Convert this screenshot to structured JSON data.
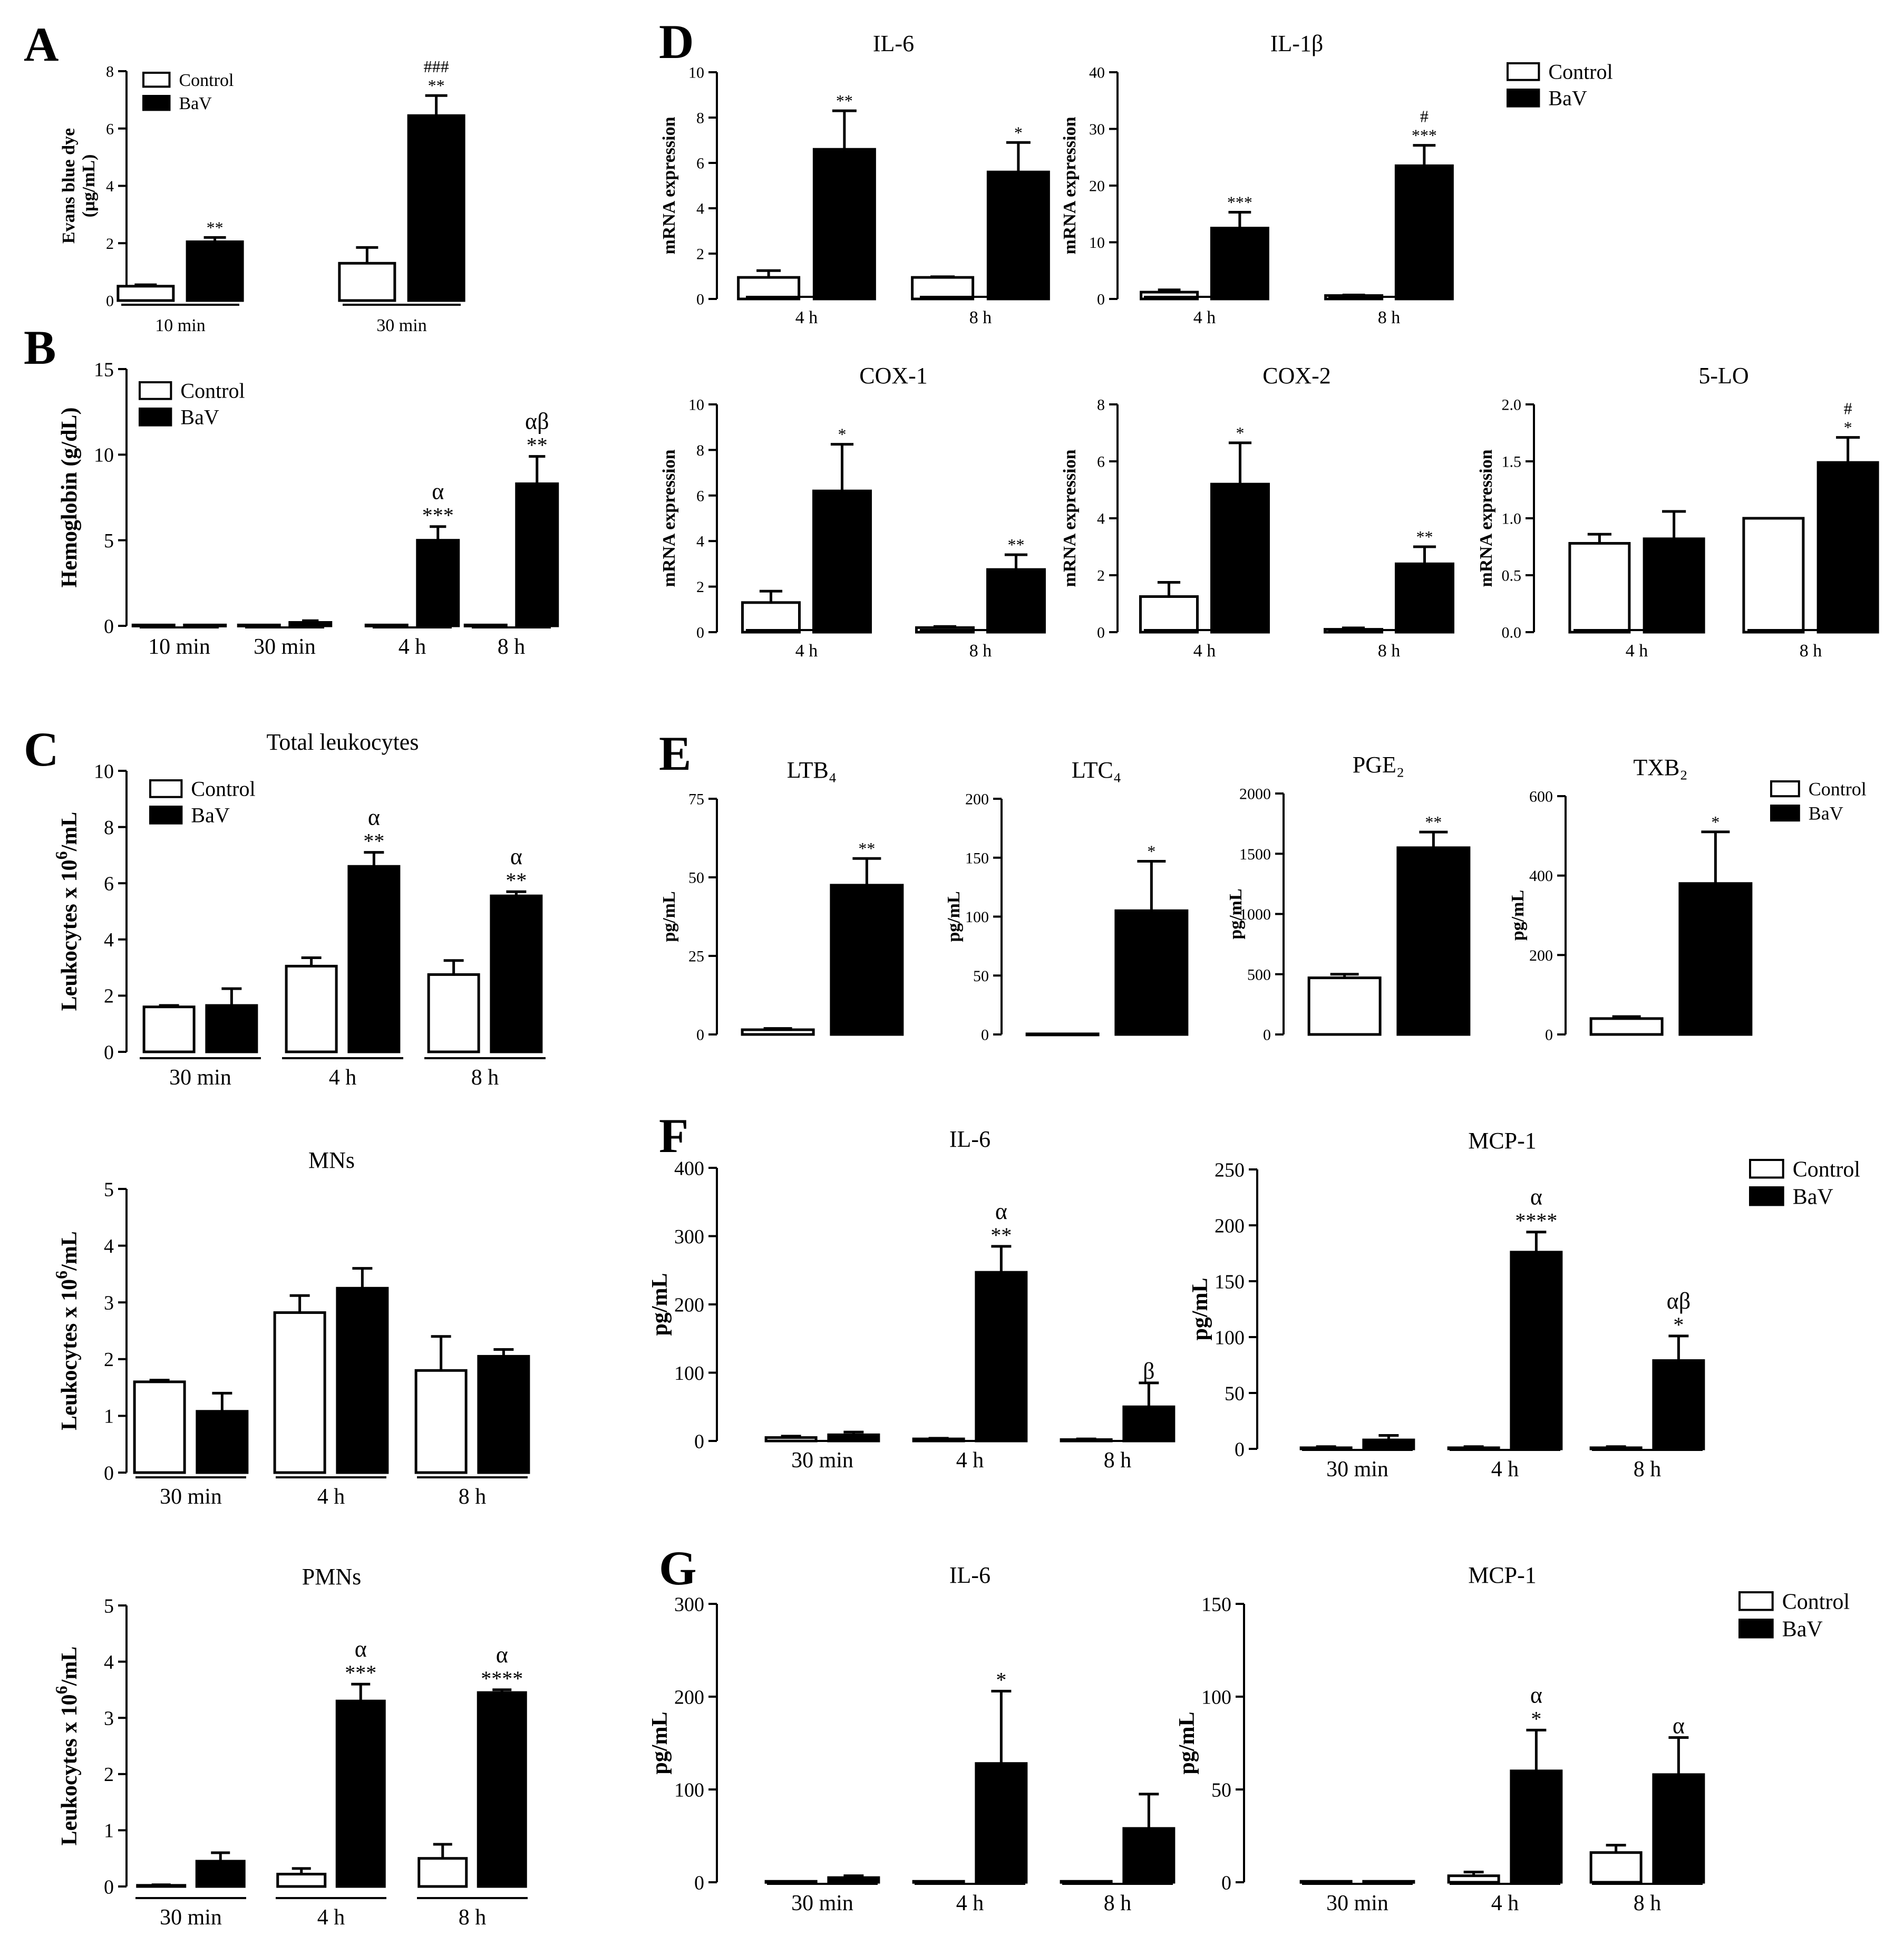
{
  "figure": {
    "colors": {
      "control": "#ffffff",
      "bav": "#000000",
      "stroke": "#000000"
    },
    "legend_labels": {
      "control": "Control",
      "bav": "BaV"
    }
  },
  "chart_data": [
    {
      "id": "A",
      "panel": "A",
      "type": "bar",
      "title": "",
      "ylabel": "Evans blue dye\n(µg/mL)",
      "ylim": [
        0,
        8
      ],
      "yticks": [
        "0",
        "2",
        "4",
        "6",
        "8"
      ],
      "groups": [
        "10 min",
        "30 min"
      ],
      "legend": "top-left",
      "series": [
        {
          "name": "Control",
          "values": [
            0.5,
            1.3
          ],
          "errors": [
            0.05,
            0.55
          ]
        },
        {
          "name": "BaV",
          "values": [
            2.05,
            6.45
          ],
          "errors": [
            0.15,
            0.7
          ]
        }
      ],
      "annotations": [
        {
          "group": 0,
          "series": 1,
          "lines": [
            "**"
          ]
        },
        {
          "group": 1,
          "series": 1,
          "lines": [
            "###",
            "**"
          ]
        }
      ]
    },
    {
      "id": "B",
      "panel": "B",
      "type": "bar",
      "title": "",
      "ylabel": "Hemoglobin (g/dL)",
      "ylim": [
        0,
        15
      ],
      "yticks": [
        "0",
        "5",
        "10",
        "15"
      ],
      "groups": [
        "10 min",
        "30 min",
        "4 h",
        "8 h"
      ],
      "legend": "top-left",
      "series": [
        {
          "name": "Control",
          "values": [
            0.05,
            0.05,
            0.05,
            0.05
          ],
          "errors": [
            0,
            0,
            0,
            0
          ]
        },
        {
          "name": "BaV",
          "values": [
            0.05,
            0.2,
            5.0,
            8.3
          ],
          "errors": [
            0,
            0.1,
            0.8,
            1.6
          ]
        }
      ],
      "annotations": [
        {
          "group": 2,
          "series": 1,
          "lines": [
            "α",
            "***"
          ]
        },
        {
          "group": 3,
          "series": 1,
          "lines": [
            "αβ",
            "**"
          ]
        }
      ]
    },
    {
      "id": "C1",
      "panel": "C",
      "type": "bar",
      "title": "Total leukocytes",
      "ylabel": "Leukocytes x 10^6/mL",
      "ylim": [
        0,
        10
      ],
      "yticks": [
        "0",
        "2",
        "4",
        "6",
        "8",
        "10"
      ],
      "groups": [
        "30 min",
        "4 h",
        "8 h"
      ],
      "legend": "top-left",
      "series": [
        {
          "name": "Control",
          "values": [
            1.6,
            3.05,
            2.75
          ],
          "errors": [
            0.05,
            0.3,
            0.5
          ]
        },
        {
          "name": "BaV",
          "values": [
            1.65,
            6.6,
            5.55
          ],
          "errors": [
            0.6,
            0.5,
            0.15
          ]
        }
      ],
      "annotations": [
        {
          "group": 1,
          "series": 1,
          "lines": [
            "α",
            "**"
          ]
        },
        {
          "group": 2,
          "series": 1,
          "lines": [
            "α",
            "**"
          ]
        }
      ]
    },
    {
      "id": "C2",
      "panel": "",
      "type": "bar",
      "title": "MNs",
      "ylabel": "Leukocytes x 10^6/mL",
      "ylim": [
        0,
        5
      ],
      "yticks": [
        "0",
        "1",
        "2",
        "3",
        "4",
        "5"
      ],
      "groups": [
        "30 min",
        "4 h",
        "8 h"
      ],
      "legend": "none",
      "series": [
        {
          "name": "Control",
          "values": [
            1.6,
            2.82,
            1.8
          ],
          "errors": [
            0.03,
            0.3,
            0.6
          ]
        },
        {
          "name": "BaV",
          "values": [
            1.08,
            3.25,
            2.05
          ],
          "errors": [
            0.32,
            0.35,
            0.12
          ]
        }
      ],
      "annotations": []
    },
    {
      "id": "C3",
      "panel": "",
      "type": "bar",
      "title": "PMNs",
      "ylabel": "Leukocytes x 10^6/mL",
      "ylim": [
        0,
        5
      ],
      "yticks": [
        "0",
        "1",
        "2",
        "3",
        "4",
        "5"
      ],
      "groups": [
        "30 min",
        "4 h",
        "8 h"
      ],
      "legend": "none",
      "series": [
        {
          "name": "Control",
          "values": [
            0.02,
            0.22,
            0.5
          ],
          "errors": [
            0.01,
            0.1,
            0.25
          ]
        },
        {
          "name": "BaV",
          "values": [
            0.45,
            3.3,
            3.45
          ],
          "errors": [
            0.15,
            0.3,
            0.05
          ]
        }
      ],
      "annotations": [
        {
          "group": 1,
          "series": 1,
          "lines": [
            "α",
            "***"
          ]
        },
        {
          "group": 2,
          "series": 1,
          "lines": [
            "α",
            "****"
          ]
        }
      ]
    },
    {
      "id": "D1",
      "panel": "D",
      "type": "bar",
      "title": "IL-6",
      "ylabel": "mRNA expression",
      "ylim": [
        0,
        10
      ],
      "yticks": [
        "0",
        "2",
        "4",
        "6",
        "8",
        "10"
      ],
      "groups": [
        "4 h",
        "8 h"
      ],
      "legend": "none",
      "series": [
        {
          "name": "Control",
          "values": [
            0.95,
            0.95
          ],
          "errors": [
            0.3,
            0.03
          ]
        },
        {
          "name": "BaV",
          "values": [
            6.6,
            5.6
          ],
          "errors": [
            1.7,
            1.3
          ]
        }
      ],
      "annotations": [
        {
          "group": 0,
          "series": 1,
          "lines": [
            "**"
          ]
        },
        {
          "group": 1,
          "series": 1,
          "lines": [
            "*"
          ]
        }
      ]
    },
    {
      "id": "D2",
      "panel": "",
      "type": "bar",
      "title": "IL-1β",
      "ylabel": "mRNA expression",
      "ylim": [
        0,
        40
      ],
      "yticks": [
        "0",
        "10",
        "20",
        "30",
        "40"
      ],
      "groups": [
        "4 h",
        "8 h"
      ],
      "legend": "top-right",
      "series": [
        {
          "name": "Control",
          "values": [
            1.2,
            0.6
          ],
          "errors": [
            0.4,
            0.1
          ]
        },
        {
          "name": "BaV",
          "values": [
            12.5,
            23.5
          ],
          "errors": [
            2.8,
            3.6
          ]
        }
      ],
      "annotations": [
        {
          "group": 0,
          "series": 1,
          "lines": [
            "***"
          ]
        },
        {
          "group": 1,
          "series": 1,
          "lines": [
            "#",
            "***"
          ]
        }
      ]
    },
    {
      "id": "D3",
      "panel": "",
      "type": "bar",
      "title": "COX-1",
      "ylabel": "mRNA expression",
      "ylim": [
        0,
        10
      ],
      "yticks": [
        "0",
        "2",
        "4",
        "6",
        "8",
        "10"
      ],
      "groups": [
        "4 h",
        "8 h"
      ],
      "legend": "none",
      "series": [
        {
          "name": "Control",
          "values": [
            1.3,
            0.2
          ],
          "errors": [
            0.5,
            0.05
          ]
        },
        {
          "name": "BaV",
          "values": [
            6.2,
            2.75
          ],
          "errors": [
            2.05,
            0.65
          ]
        }
      ],
      "annotations": [
        {
          "group": 0,
          "series": 1,
          "lines": [
            "*"
          ]
        },
        {
          "group": 1,
          "series": 1,
          "lines": [
            "**"
          ]
        }
      ]
    },
    {
      "id": "D4",
      "panel": "",
      "type": "bar",
      "title": "COX-2",
      "ylabel": "mRNA expression",
      "ylim": [
        0,
        8
      ],
      "yticks": [
        "0",
        "2",
        "4",
        "6",
        "8"
      ],
      "groups": [
        "4 h",
        "8 h"
      ],
      "legend": "none",
      "series": [
        {
          "name": "Control",
          "values": [
            1.25,
            0.1
          ],
          "errors": [
            0.5,
            0.05
          ]
        },
        {
          "name": "BaV",
          "values": [
            5.2,
            2.4
          ],
          "errors": [
            1.45,
            0.6
          ]
        }
      ],
      "annotations": [
        {
          "group": 0,
          "series": 1,
          "lines": [
            "*"
          ]
        },
        {
          "group": 1,
          "series": 1,
          "lines": [
            "**"
          ]
        }
      ]
    },
    {
      "id": "D5",
      "panel": "",
      "type": "bar",
      "title": "5-LO",
      "ylabel": "mRNA expression",
      "ylim": [
        0,
        2
      ],
      "yticks": [
        "0.0",
        "0.5",
        "1.0",
        "1.5",
        "2.0"
      ],
      "groups": [
        "4 h",
        "8 h"
      ],
      "legend": "none",
      "series": [
        {
          "name": "Control",
          "values": [
            0.78,
            1.0
          ],
          "errors": [
            0.08,
            0
          ]
        },
        {
          "name": "BaV",
          "values": [
            0.82,
            1.49
          ],
          "errors": [
            0.24,
            0.22
          ]
        }
      ],
      "annotations": [
        {
          "group": 1,
          "series": 1,
          "lines": [
            "#",
            "*"
          ]
        }
      ]
    },
    {
      "id": "E1",
      "panel": "E",
      "type": "bar",
      "title": "LTB₄",
      "ylabel": "pg/mL",
      "ylim": [
        0,
        75
      ],
      "yticks": [
        "0",
        "25",
        "50",
        "75"
      ],
      "groups": [
        ""
      ],
      "legend": "none",
      "series": [
        {
          "name": "Control",
          "values": [
            1.5
          ],
          "errors": [
            0.4
          ]
        },
        {
          "name": "BaV",
          "values": [
            47.5
          ],
          "errors": [
            8.5
          ]
        }
      ],
      "annotations": [
        {
          "group": 0,
          "series": 1,
          "lines": [
            "**"
          ]
        }
      ]
    },
    {
      "id": "E2",
      "panel": "",
      "type": "bar",
      "title": "LTC₄",
      "ylabel": "pg/mL",
      "ylim": [
        0,
        200
      ],
      "yticks": [
        "0",
        "50",
        "100",
        "150",
        "200"
      ],
      "groups": [
        ""
      ],
      "legend": "none",
      "series": [
        {
          "name": "Control",
          "values": [
            0.5
          ],
          "errors": [
            0
          ]
        },
        {
          "name": "BaV",
          "values": [
            105
          ],
          "errors": [
            42
          ]
        }
      ],
      "annotations": [
        {
          "group": 0,
          "series": 1,
          "lines": [
            "*"
          ]
        }
      ]
    },
    {
      "id": "E3",
      "panel": "",
      "type": "bar",
      "title": "PGE₂",
      "ylabel": "pg/mL",
      "ylim": [
        0,
        2000
      ],
      "yticks": [
        "0",
        "500",
        "1000",
        "1500",
        "2000"
      ],
      "groups": [
        ""
      ],
      "legend": "none",
      "series": [
        {
          "name": "Control",
          "values": [
            470
          ],
          "errors": [
            30
          ]
        },
        {
          "name": "BaV",
          "values": [
            1550
          ],
          "errors": [
            130
          ]
        }
      ],
      "annotations": [
        {
          "group": 0,
          "series": 1,
          "lines": [
            "**"
          ]
        }
      ]
    },
    {
      "id": "E4",
      "panel": "",
      "type": "bar",
      "title": "TXB₂",
      "ylabel": "pg/mL",
      "ylim": [
        0,
        600
      ],
      "yticks": [
        "0",
        "200",
        "400",
        "600"
      ],
      "groups": [
        ""
      ],
      "legend": "top-right",
      "series": [
        {
          "name": "Control",
          "values": [
            40
          ],
          "errors": [
            5
          ]
        },
        {
          "name": "BaV",
          "values": [
            380
          ],
          "errors": [
            130
          ]
        }
      ],
      "annotations": [
        {
          "group": 0,
          "series": 1,
          "lines": [
            "*"
          ]
        }
      ]
    },
    {
      "id": "F1",
      "panel": "F",
      "type": "bar",
      "title": "IL-6",
      "ylabel": "pg/mL",
      "ylim": [
        0,
        400
      ],
      "yticks": [
        "0",
        "100",
        "200",
        "300",
        "400"
      ],
      "groups": [
        "30 min",
        "4 h",
        "8 h"
      ],
      "legend": "none",
      "series": [
        {
          "name": "Control",
          "values": [
            5,
            3,
            2
          ],
          "errors": [
            2,
            1,
            1
          ]
        },
        {
          "name": "BaV",
          "values": [
            9,
            247,
            50
          ],
          "errors": [
            4,
            38,
            35
          ]
        }
      ],
      "annotations": [
        {
          "group": 1,
          "series": 1,
          "lines": [
            "α",
            "**"
          ]
        },
        {
          "group": 2,
          "series": 1,
          "lines": [
            "β"
          ]
        }
      ]
    },
    {
      "id": "F2",
      "panel": "",
      "type": "bar",
      "title": "MCP-1",
      "ylabel": "pg/mL",
      "ylim": [
        0,
        250
      ],
      "yticks": [
        "0",
        "50",
        "100",
        "150",
        "200",
        "250"
      ],
      "groups": [
        "30 min",
        "4 h",
        "8 h"
      ],
      "legend": "top-right",
      "series": [
        {
          "name": "Control",
          "values": [
            1,
            1,
            1
          ],
          "errors": [
            1,
            1,
            1
          ]
        },
        {
          "name": "BaV",
          "values": [
            8,
            176,
            79
          ],
          "errors": [
            4,
            18,
            22
          ]
        }
      ],
      "annotations": [
        {
          "group": 1,
          "series": 1,
          "lines": [
            "α",
            "****"
          ]
        },
        {
          "group": 2,
          "series": 1,
          "lines": [
            "αβ",
            "*"
          ]
        }
      ]
    },
    {
      "id": "G1",
      "panel": "G",
      "type": "bar",
      "title": "IL-6",
      "ylabel": "pg/mL",
      "ylim": [
        0,
        300
      ],
      "yticks": [
        "0",
        "100",
        "200",
        "300"
      ],
      "groups": [
        "30 min",
        "4 h",
        "8 h"
      ],
      "legend": "none",
      "series": [
        {
          "name": "Control",
          "values": [
            1,
            1,
            1
          ],
          "errors": [
            0,
            0,
            0
          ]
        },
        {
          "name": "BaV",
          "values": [
            5,
            128,
            58
          ],
          "errors": [
            2,
            78,
            37
          ]
        }
      ],
      "annotations": [
        {
          "group": 1,
          "series": 1,
          "lines": [
            "*"
          ]
        }
      ]
    },
    {
      "id": "G2",
      "panel": "",
      "type": "bar",
      "title": "MCP-1",
      "ylabel": "pg/mL",
      "ylim": [
        0,
        150
      ],
      "yticks": [
        "0",
        "50",
        "100",
        "150"
      ],
      "groups": [
        "30 min",
        "4 h",
        "8 h"
      ],
      "legend": "top-right",
      "series": [
        {
          "name": "Control",
          "values": [
            0.5,
            3.5,
            16
          ],
          "errors": [
            0,
            2,
            4
          ]
        },
        {
          "name": "BaV",
          "values": [
            0.5,
            60,
            58
          ],
          "errors": [
            0,
            22,
            20
          ]
        }
      ],
      "annotations": [
        {
          "group": 1,
          "series": 1,
          "lines": [
            "α",
            "*"
          ]
        },
        {
          "group": 2,
          "series": 1,
          "lines": [
            "α"
          ]
        }
      ]
    }
  ]
}
